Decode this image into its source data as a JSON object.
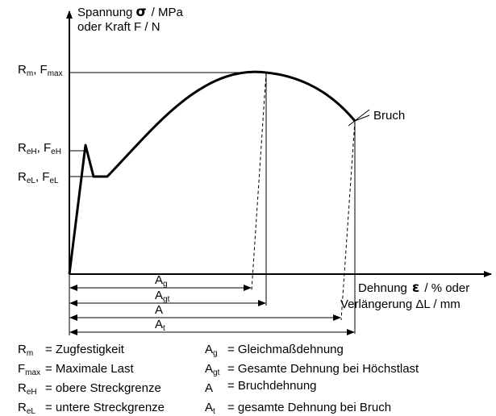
{
  "y_axis": {
    "line1_prefix": "Spannung",
    "line1_symbol": "σ",
    "line1_unit": "/ MPa",
    "line2": "oder Kraft F  / N"
  },
  "x_axis": {
    "line1_prefix": "Dehnung",
    "line1_symbol": "ε",
    "line1_unit": "/ % oder",
    "line2": "Verlängerung ΔL / mm"
  },
  "levels": {
    "rm": {
      "a": "R",
      "a_sub": "m",
      "sep": ", F",
      "b_sub": "max"
    },
    "reh": {
      "a": "R",
      "a_sub": "eH",
      "sep": ", F",
      "b_sub": "eH"
    },
    "rel": {
      "a": "R",
      "a_sub": "eL",
      "sep": ", F",
      "b_sub": "eL"
    }
  },
  "annotations": {
    "bruch": "Bruch"
  },
  "dimensions": [
    {
      "main": "A",
      "sub": "g"
    },
    {
      "main": "A",
      "sub": "gt"
    },
    {
      "main": "A",
      "sub": ""
    },
    {
      "main": "A",
      "sub": "t"
    }
  ],
  "legend": {
    "left": [
      {
        "sym": "R",
        "sub": "m",
        "text": "= Zugfestigkeit"
      },
      {
        "sym": "F",
        "sub": "max",
        "text": "= Maximale Last"
      },
      {
        "sym": "R",
        "sub": "eH",
        "text": "= obere Streckgrenze"
      },
      {
        "sym": "R",
        "sub": "eL",
        "text": "= untere Streckgrenze"
      }
    ],
    "right": [
      {
        "sym": "A",
        "sub": "g",
        "text": "= Gleichmaßdehnung"
      },
      {
        "sym": "A",
        "sub": "gt",
        "text": "= Gesamte Dehnung bei Höchstlast"
      },
      {
        "sym": "A",
        "sub": "",
        "text": "= Bruchdehnung"
      },
      {
        "sym": "A",
        "sub": "t",
        "text": "= gesamte Dehnung bei Bruch"
      }
    ]
  }
}
